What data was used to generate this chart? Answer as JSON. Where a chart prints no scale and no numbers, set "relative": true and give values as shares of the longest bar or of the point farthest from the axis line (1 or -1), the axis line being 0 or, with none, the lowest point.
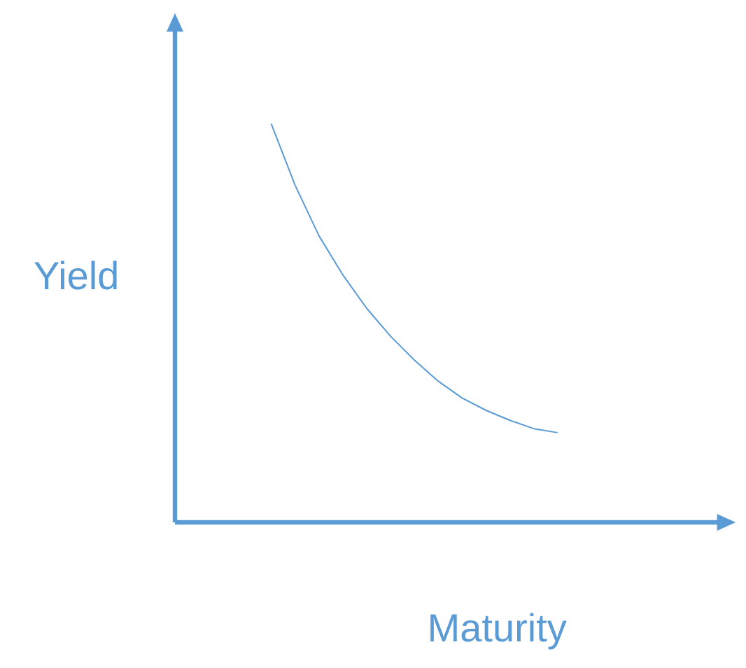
{
  "chart_data": {
    "type": "line",
    "xlabel": "Maturity",
    "ylabel": "Yield",
    "relative": true,
    "categories": [
      null,
      null,
      null,
      null,
      null,
      null,
      null,
      null,
      null,
      null,
      null,
      null,
      null
    ],
    "values": [
      1,
      0.846,
      0.719,
      0.621,
      0.537,
      0.467,
      0.407,
      0.354,
      0.312,
      0.281,
      0.256,
      0.235,
      0.225
    ],
    "color": "#5b9bd5"
  }
}
